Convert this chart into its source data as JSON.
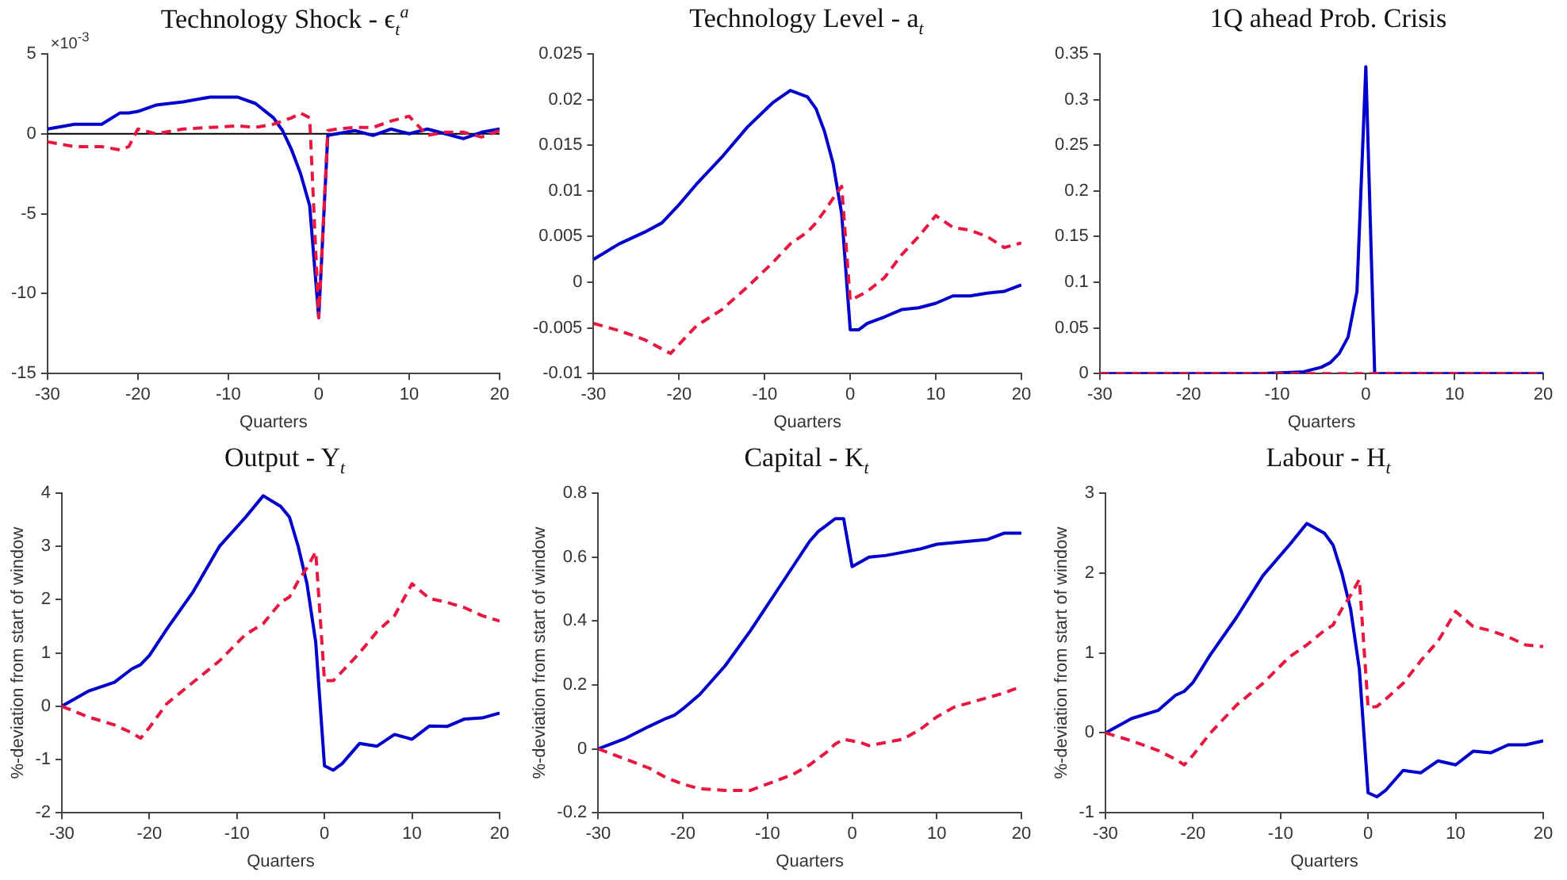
{
  "chart_data": [
    {
      "type": "line",
      "title": "Technology Shock - ϵ$_{t}$$^{a}$",
      "x": [
        -30,
        -27,
        -24,
        -22,
        -21,
        -20,
        -18,
        -15,
        -12,
        -9,
        -7,
        -5,
        -4,
        -3,
        -2,
        -1,
        0,
        1,
        2,
        4,
        6,
        8,
        10,
        12,
        14,
        16,
        18,
        20
      ],
      "series": [
        {
          "color": "#0000cc",
          "line_style": "solid",
          "values": [
            0.3,
            0.6,
            0.6,
            1.3,
            1.3,
            1.4,
            1.8,
            2.0,
            2.3,
            2.3,
            1.9,
            1.0,
            0.2,
            -1.0,
            -2.5,
            -4.5,
            -11.5,
            -0.1,
            0,
            0.2,
            -0.1,
            0.3,
            0,
            0.3,
            0,
            -0.3,
            0.1,
            0.3
          ]
        },
        {
          "color": "#e8173f",
          "line_style": "dashed",
          "values": [
            -0.5,
            -0.8,
            -0.8,
            -1.0,
            -0.8,
            0.3,
            0,
            0.3,
            0.4,
            0.5,
            0.4,
            0.6,
            0.8,
            1.0,
            1.3,
            1.0,
            -11.5,
            0.2,
            0.3,
            0.4,
            0.4,
            0.8,
            1.1,
            -0.1,
            0.1,
            0.1,
            -0.2,
            0.2
          ]
        }
      ],
      "xlabel": "Quarters",
      "xlim": [
        -30,
        20
      ],
      "xticks": [
        -30,
        -20,
        -10,
        0,
        10,
        20
      ],
      "ylim": [
        -15,
        5
      ],
      "yticks": [
        -15,
        -10,
        -5,
        0,
        5
      ],
      "ref_lines": [
        {
          "axis": "y",
          "value": 0,
          "color": "#000000"
        }
      ],
      "annotations": [
        "×10$^{-3}$"
      ],
      "grid": false,
      "legend": false
    },
    {
      "type": "line",
      "title": "Technology Level - a$_{t}$",
      "xlabel": "Quarters",
      "x": [
        -30,
        -27,
        -24,
        -22,
        -21,
        -20,
        -18,
        -15,
        -12,
        -9,
        -7,
        -5,
        -4,
        -3,
        -2,
        -1,
        0,
        1,
        2,
        4,
        6,
        8,
        10,
        12,
        14,
        16,
        18,
        20
      ],
      "series": [
        {
          "color": "#0000cc",
          "line_style": "solid",
          "values": [
            0.0025,
            0.0042,
            0.0055,
            0.0065,
            0.0075,
            0.0085,
            0.0107,
            0.0137,
            0.017,
            0.0197,
            0.021,
            0.0203,
            0.019,
            0.0165,
            0.013,
            0.0075,
            -0.0052,
            -0.0052,
            -0.0045,
            -0.0038,
            -0.003,
            -0.0028,
            -0.0023,
            -0.0015,
            -0.0015,
            -0.0012,
            -0.001,
            -0.0003
          ]
        },
        {
          "color": "#e8173f",
          "line_style": "dashed",
          "values": [
            -0.0045,
            -0.0053,
            -0.0063,
            -0.0073,
            -0.0078,
            -0.0068,
            -0.0048,
            -0.003,
            -0.0005,
            0.0022,
            0.0042,
            0.0055,
            0.0065,
            0.0078,
            0.0092,
            0.0105,
            -0.002,
            -0.0015,
            -0.001,
            0.0005,
            0.003,
            0.005,
            0.0073,
            0.006,
            0.0057,
            0.005,
            0.0038,
            0.0043
          ]
        }
      ],
      "xlim": [
        -30,
        20
      ],
      "xticks": [
        -30,
        -20,
        -10,
        0,
        10,
        20
      ],
      "ylim": [
        -0.01,
        0.025
      ],
      "yticks": [
        -0.01,
        -0.005,
        0,
        0.005,
        0.01,
        0.015,
        0.02,
        0.025
      ],
      "grid": false,
      "legend": false
    },
    {
      "type": "line",
      "title": "1Q ahead Prob. Crisis",
      "xlabel": "Quarters",
      "x": [
        -30,
        -27,
        -24,
        -22,
        -21,
        -20,
        -18,
        -15,
        -12,
        -9,
        -7,
        -5,
        -4,
        -3,
        -2,
        -1,
        0,
        1,
        2,
        4,
        6,
        8,
        10,
        12,
        14,
        16,
        18,
        20
      ],
      "series": [
        {
          "color": "#0000cc",
          "line_style": "solid",
          "values": [
            0,
            0,
            0,
            0,
            0,
            0,
            0,
            0,
            0,
            0.001,
            0.002,
            0.007,
            0.012,
            0.022,
            0.04,
            0.09,
            0.336,
            0,
            0,
            0,
            0,
            0,
            0,
            0,
            0,
            0,
            0,
            0
          ]
        },
        {
          "color": "#e8173f",
          "line_style": "dashed",
          "values": [
            0,
            0,
            0,
            0,
            0,
            0,
            0,
            0,
            0,
            0,
            0,
            0,
            0,
            0,
            0,
            0,
            0,
            0,
            0,
            0,
            0,
            0,
            0,
            0,
            0,
            0,
            0,
            0
          ]
        }
      ],
      "xlim": [
        -30,
        20
      ],
      "xticks": [
        -30,
        -20,
        -10,
        0,
        10,
        20
      ],
      "ylim": [
        0,
        0.35
      ],
      "yticks": [
        0,
        0.05,
        0.1,
        0.15,
        0.2,
        0.25,
        0.3,
        0.35
      ],
      "grid": false,
      "legend": false
    },
    {
      "type": "line",
      "title": "Output - Y$_{t}$",
      "xlabel": "Quarters",
      "ylabel": "%-deviation from start of window",
      "x": [
        -30,
        -27,
        -24,
        -22,
        -21,
        -20,
        -18,
        -15,
        -12,
        -9,
        -7,
        -5,
        -4,
        -3,
        -2,
        -1,
        0,
        1,
        2,
        4,
        6,
        8,
        10,
        12,
        14,
        16,
        18,
        20
      ],
      "series": [
        {
          "color": "#0000cc",
          "line_style": "solid",
          "values": [
            0,
            0.28,
            0.45,
            0.7,
            0.78,
            0.95,
            1.45,
            2.15,
            3.0,
            3.55,
            3.95,
            3.75,
            3.55,
            3.0,
            2.3,
            1.2,
            -1.12,
            -1.2,
            -1.08,
            -0.7,
            -0.75,
            -0.53,
            -0.62,
            -0.37,
            -0.38,
            -0.24,
            -0.22,
            -0.13
          ]
        },
        {
          "color": "#e8173f",
          "line_style": "dashed",
          "values": [
            0,
            -0.2,
            -0.35,
            -0.5,
            -0.6,
            -0.4,
            0.05,
            0.45,
            0.85,
            1.35,
            1.55,
            1.95,
            2.05,
            2.35,
            2.6,
            2.9,
            0.48,
            0.48,
            0.65,
            1.0,
            1.4,
            1.7,
            2.3,
            2.02,
            1.95,
            1.85,
            1.7,
            1.6
          ]
        }
      ],
      "xlim": [
        -30,
        20
      ],
      "xticks": [
        -30,
        -20,
        -10,
        0,
        10,
        20
      ],
      "ylim": [
        -2,
        4
      ],
      "yticks": [
        -2,
        -1,
        0,
        1,
        2,
        3,
        4
      ],
      "grid": false,
      "legend": false
    },
    {
      "type": "line",
      "title": "Capital - K$_{t}$",
      "xlabel": "Quarters",
      "ylabel": "%-deviation from start of window",
      "x": [
        -30,
        -27,
        -24,
        -22,
        -21,
        -20,
        -18,
        -15,
        -12,
        -9,
        -7,
        -5,
        -4,
        -3,
        -2,
        -1,
        0,
        1,
        2,
        4,
        6,
        8,
        10,
        12,
        14,
        16,
        18,
        20
      ],
      "series": [
        {
          "color": "#0000cc",
          "line_style": "solid",
          "values": [
            0,
            0.03,
            0.07,
            0.095,
            0.105,
            0.125,
            0.17,
            0.26,
            0.37,
            0.49,
            0.57,
            0.65,
            0.68,
            0.7,
            0.72,
            0.72,
            0.57,
            0.585,
            0.6,
            0.605,
            0.615,
            0.625,
            0.64,
            0.645,
            0.65,
            0.655,
            0.675,
            0.675
          ]
        },
        {
          "color": "#e8173f",
          "line_style": "dashed",
          "values": [
            0,
            -0.03,
            -0.06,
            -0.09,
            -0.1,
            -0.11,
            -0.125,
            -0.13,
            -0.13,
            -0.1,
            -0.08,
            -0.05,
            -0.03,
            -0.01,
            0.015,
            0.03,
            0.025,
            0.02,
            0.01,
            0.02,
            0.03,
            0.06,
            0.1,
            0.13,
            0.145,
            0.16,
            0.175,
            0.195
          ]
        }
      ],
      "xlim": [
        -30,
        20
      ],
      "xticks": [
        -30,
        -20,
        -10,
        0,
        10,
        20
      ],
      "ylim": [
        -0.2,
        0.8
      ],
      "yticks": [
        -0.2,
        0,
        0.2,
        0.4,
        0.6,
        0.8
      ],
      "grid": false,
      "legend": false
    },
    {
      "type": "line",
      "title": "Labour - H$_{t}$",
      "xlabel": "Quarters",
      "ylabel": "%-deviation from start of window",
      "x": [
        -30,
        -27,
        -24,
        -22,
        -21,
        -20,
        -18,
        -15,
        -12,
        -9,
        -7,
        -5,
        -4,
        -3,
        -2,
        -1,
        0,
        1,
        2,
        4,
        6,
        8,
        10,
        12,
        14,
        16,
        18,
        20
      ],
      "series": [
        {
          "color": "#0000cc",
          "line_style": "solid",
          "values": [
            0,
            0.18,
            0.28,
            0.47,
            0.52,
            0.63,
            0.98,
            1.45,
            1.97,
            2.35,
            2.62,
            2.5,
            2.35,
            2.0,
            1.55,
            0.8,
            -0.75,
            -0.8,
            -0.72,
            -0.47,
            -0.5,
            -0.35,
            -0.4,
            -0.23,
            -0.25,
            -0.15,
            -0.15,
            -0.1
          ]
        },
        {
          "color": "#e8173f",
          "line_style": "dashed",
          "values": [
            0,
            -0.1,
            -0.22,
            -0.33,
            -0.4,
            -0.28,
            0,
            0.35,
            0.62,
            0.95,
            1.1,
            1.28,
            1.35,
            1.55,
            1.72,
            1.92,
            0.32,
            0.33,
            0.42,
            0.62,
            0.9,
            1.15,
            1.52,
            1.33,
            1.28,
            1.2,
            1.1,
            1.08
          ]
        }
      ],
      "xlim": [
        -30,
        20
      ],
      "xticks": [
        -30,
        -20,
        -10,
        0,
        10,
        20
      ],
      "ylim": [
        -1,
        3
      ],
      "yticks": [
        -1,
        0,
        1,
        2,
        3
      ],
      "grid": false,
      "legend": false
    }
  ]
}
